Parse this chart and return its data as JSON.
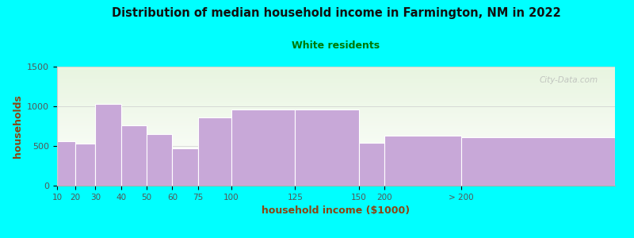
{
  "title": "Distribution of median household income in Farmington, NM in 2022",
  "subtitle": "White residents",
  "xlabel": "household income ($1000)",
  "ylabel": "households",
  "background_color": "#00FFFF",
  "bar_color": "#C8A8D8",
  "title_color": "#111111",
  "subtitle_color": "#007700",
  "axis_label_color": "#8B4513",
  "tick_label_color": "#555555",
  "categories": [
    "10",
    "20",
    "30",
    "40",
    "50",
    "60",
    "75",
    "100",
    "125",
    "150",
    "200",
    "> 200"
  ],
  "values": [
    560,
    530,
    1030,
    760,
    650,
    470,
    860,
    960,
    960,
    540,
    630,
    610
  ],
  "bar_edges": [
    7,
    14,
    22,
    32,
    42,
    52,
    62,
    75,
    100,
    125,
    135,
    165,
    225
  ],
  "tick_labels_x": [
    "10",
    "20",
    "30",
    "40",
    "50",
    "60",
    "75",
    "100",
    "125",
    "150",
    "200",
    "> 200"
  ],
  "ylim": [
    0,
    1500
  ],
  "yticks": [
    0,
    500,
    1000,
    1500
  ],
  "watermark": "City-Data.com",
  "plot_bg_color_top": "#f5fff0",
  "plot_bg_color_bottom": "#ffffff"
}
